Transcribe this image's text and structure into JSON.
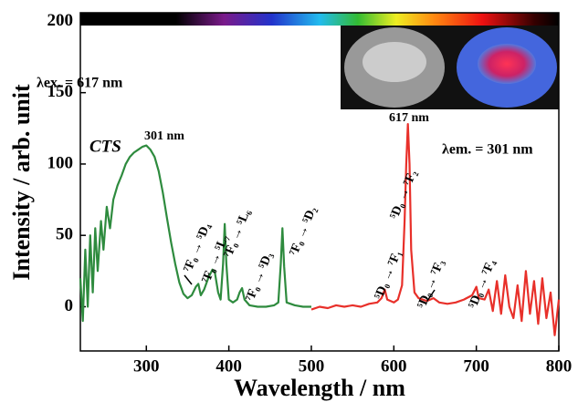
{
  "chart_data": {
    "type": "line",
    "xlabel": "Wavelength / nm",
    "ylabel": "Intensity / arb. unit",
    "xlim": [
      220,
      800
    ],
    "ylim": [
      -31,
      206
    ],
    "xticks": [
      300,
      400,
      500,
      600,
      700,
      800
    ],
    "yticks": [
      0,
      50,
      100,
      150,
      200
    ],
    "series": [
      {
        "color": "#2e8b3e",
        "x": [
          220,
          223,
          226,
          229,
          232,
          235,
          238,
          241,
          245,
          248,
          252,
          256,
          260,
          265,
          270,
          275,
          280,
          285,
          290,
          295,
          300,
          305,
          310,
          315,
          320,
          325,
          330,
          335,
          340,
          345,
          350,
          355,
          360,
          363,
          366,
          370,
          375,
          380,
          383,
          387,
          390,
          393,
          395,
          397,
          400,
          405,
          410,
          413,
          416,
          419,
          425,
          435,
          445,
          455,
          460,
          463,
          465,
          467,
          470,
          480,
          490,
          500
        ],
        "values": [
          20,
          -10,
          40,
          0,
          50,
          10,
          55,
          25,
          60,
          40,
          70,
          55,
          75,
          85,
          92,
          100,
          105,
          108,
          110,
          112,
          113,
          110,
          105,
          95,
          80,
          62,
          45,
          30,
          17,
          9,
          6,
          8,
          14,
          16,
          8,
          12,
          20,
          26,
          24,
          10,
          5,
          30,
          58,
          30,
          5,
          3,
          5,
          10,
          13,
          5,
          1,
          0,
          0,
          1,
          3,
          30,
          55,
          28,
          3,
          1,
          0,
          0
        ]
      },
      {
        "color": "#e8302a",
        "x": [
          500,
          510,
          520,
          530,
          540,
          550,
          560,
          570,
          580,
          585,
          589,
          592,
          600,
          605,
          610,
          613,
          615,
          617,
          619,
          621,
          625,
          630,
          640,
          648,
          655,
          665,
          675,
          685,
          695,
          700,
          703,
          710,
          715,
          720,
          725,
          730,
          735,
          740,
          745,
          750,
          755,
          760,
          765,
          770,
          775,
          780,
          785,
          790,
          795,
          800
        ],
        "values": [
          -2,
          0,
          -1,
          1,
          0,
          1,
          0,
          2,
          3,
          6,
          12,
          5,
          3,
          5,
          15,
          60,
          100,
          128,
          100,
          40,
          10,
          6,
          4,
          6,
          3,
          2,
          3,
          5,
          8,
          14,
          6,
          5,
          12,
          -3,
          18,
          -5,
          22,
          0,
          -8,
          15,
          -10,
          25,
          -5,
          18,
          -12,
          20,
          -8,
          10,
          -20,
          5
        ]
      }
    ],
    "annotations": [
      "CTS",
      "301 nm",
      "λex. = 617 nm",
      "617 nm",
      "λem. = 301 nm",
      "⁷F₀ → ⁵D₄",
      "⁷F₀ → ⁵L₇",
      "⁷F₀ → ⁵L₆",
      "⁷F₀ → ⁵D₃",
      "⁷F₀ → ⁵D₂",
      "⁵D₀ → ⁷F₁",
      "⁵D₀ → ⁷F₂",
      "⁵D₀ → ⁷F₃",
      "⁵D₀ → ⁷F₄"
    ]
  }
}
